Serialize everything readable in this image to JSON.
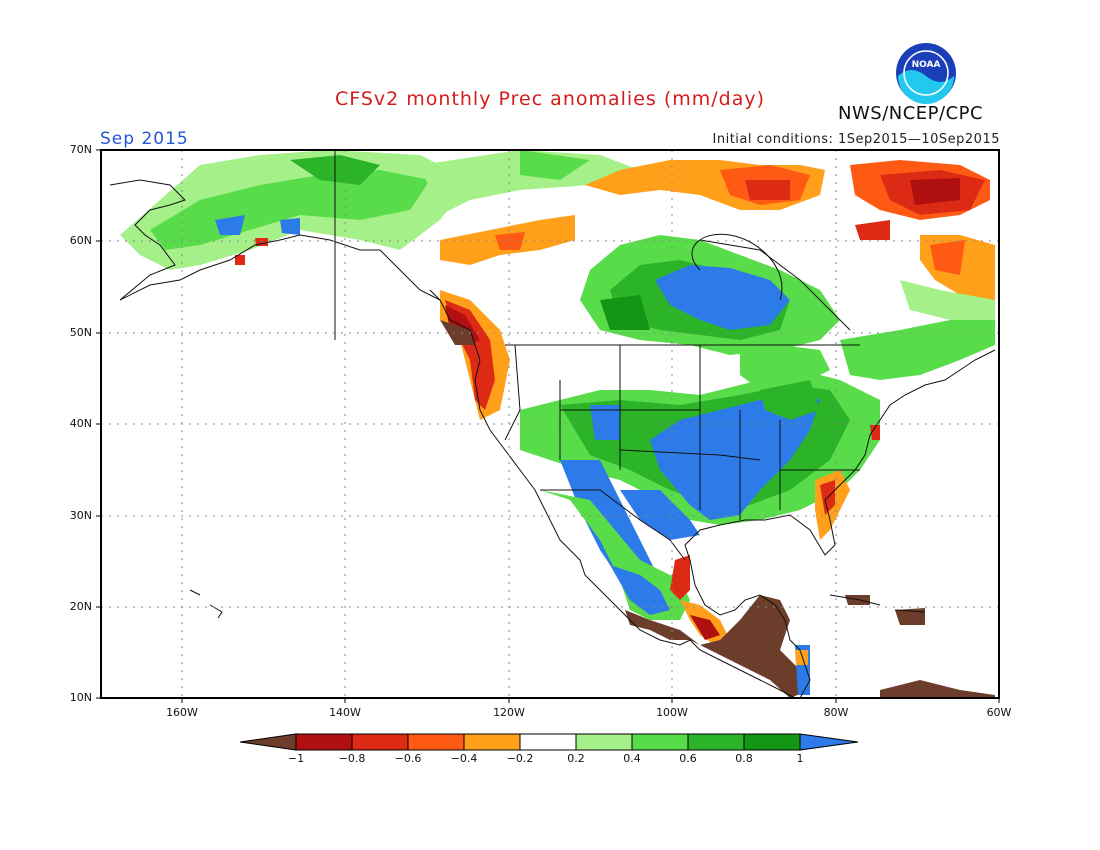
{
  "title": "CFSv2 monthly Prec anomalies (mm/day)",
  "valid_month": "Sep 2015",
  "initial_conditions": "Initial conditions: 1Sep2015—10Sep2015",
  "agency": "NWS/NCEP/CPC",
  "logo_text": "NOAA",
  "map": {
    "lat_labels": [
      "70N",
      "60N",
      "50N",
      "40N",
      "30N",
      "20N",
      "10N"
    ],
    "lon_labels": [
      "160W",
      "140W",
      "120W",
      "100W",
      "80W",
      "60W"
    ],
    "lat_range": [
      10,
      70
    ],
    "lon_range": [
      -170,
      -60
    ]
  },
  "colorbar": {
    "ticks": [
      "−1",
      "−0.8",
      "−0.6",
      "−0.4",
      "−0.2",
      "0.2",
      "0.4",
      "0.6",
      "0.8",
      "1"
    ],
    "colors": [
      "#6b3d2a",
      "#b01010",
      "#dd2a14",
      "#ff5a14",
      "#ff9f1a",
      "#ffffff",
      "#a6f08a",
      "#58dc4a",
      "#2cb428",
      "#149614",
      "#2d7be8"
    ]
  },
  "palette": {
    "dry_extreme": "#6b3d2a",
    "dry_strong": "#b01010",
    "dry_mod": "#dd2a14",
    "dry_light": "#ff5a14",
    "dry_weak": "#ff9f1a",
    "wet_weak": "#a6f08a",
    "wet_light": "#58dc4a",
    "wet_mod": "#2cb428",
    "wet_strong": "#149614",
    "wet_extreme": "#2d7be8"
  }
}
